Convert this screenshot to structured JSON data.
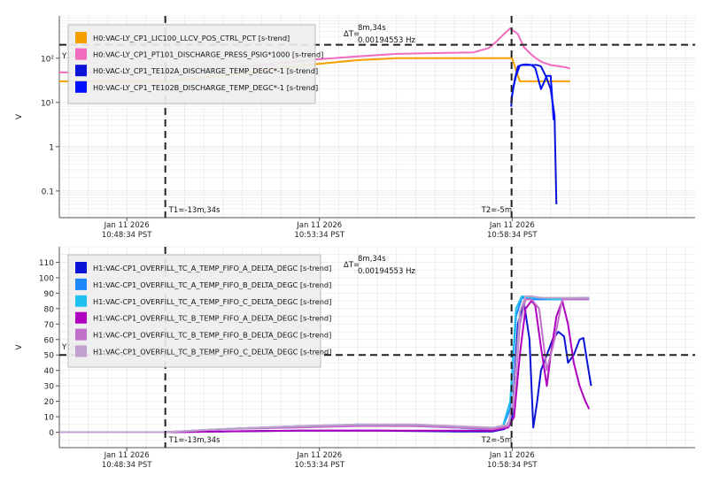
{
  "colors": {
    "cursor": "#222222",
    "ref": "#222222",
    "grid": "#e6e6e6",
    "axis": "#555555",
    "legend_bg": "#eeeeee"
  },
  "chart_data": [
    {
      "type": "line",
      "ylabel": "V",
      "yscale": "log",
      "ylim": [
        0.025,
        900
      ],
      "xlim": [
        -18.5,
        14.5
      ],
      "grid": true,
      "yticks": [
        {
          "v": 0.1,
          "label": "0.1"
        },
        {
          "v": 1,
          "label": "1"
        },
        {
          "v": 10,
          "label": "10¹"
        },
        {
          "v": 100,
          "label": "10²"
        }
      ],
      "xticks": [
        {
          "v": -15,
          "l1": "Jan 11 2026",
          "l2": "10:48:34 PST"
        },
        {
          "v": -5,
          "l1": "Jan 11 2026",
          "l2": "10:53:34 PST"
        },
        {
          "v": 5,
          "l1": "Jan 11 2026",
          "l2": "10:58:34 PST"
        }
      ],
      "cursors": [
        {
          "x": -13,
          "label": "T1=-13m,34s"
        },
        {
          "x": 4.97,
          "label": "T2=-5m"
        }
      ],
      "delta": {
        "label": "ΔT=",
        "line1": "8m,34s",
        "line2": "0.00194553 Hz"
      },
      "ref": {
        "y": 200,
        "label": "Y1="
      },
      "legend_position": "top-left",
      "series": [
        {
          "name": "H0:VAC-LY_CP1_LIC100_LLCV_POS_CTRL_PCT [s-trend]",
          "color": "#f5a000",
          "x": [
            -18.5,
            -13.1,
            -12.9,
            -9,
            -6,
            -3,
            -1,
            2,
            4.5,
            5.0,
            5.4,
            8
          ],
          "y": [
            30,
            30,
            30,
            45,
            68,
            90,
            100,
            100,
            100,
            100,
            30,
            30
          ]
        },
        {
          "name": "H0:VAC-LY_CP1_PT101_DISCHARGE_PRESS_PSIG*1000 [s-trend]",
          "color": "#f06cbf",
          "x": [
            -18.5,
            -17,
            -15,
            -13.5,
            -12.5,
            -11,
            -9,
            -7,
            -5,
            -3,
            -1,
            1,
            3,
            3.8,
            4.2,
            4.6,
            4.9,
            5.3,
            5.6,
            6.0,
            6.3,
            6.6,
            7.0,
            7.4,
            7.8,
            8
          ],
          "y": [
            48,
            47,
            46,
            46,
            48,
            55,
            65,
            78,
            95,
            110,
            125,
            130,
            135,
            170,
            240,
            360,
            470,
            350,
            180,
            120,
            95,
            80,
            70,
            66,
            62,
            58
          ]
        },
        {
          "name": "H0:VAC-LY_CP1_TE102A_DISCHARGE_TEMP_DEGC*-1 [s-trend]",
          "color": "#0a12d8",
          "x": [
            4.95,
            5.0,
            5.15,
            5.3,
            5.5,
            6.0,
            6.3,
            6.5,
            6.8,
            7.0,
            7.2,
            7.3
          ],
          "y": [
            8,
            15,
            35,
            65,
            70,
            70,
            70,
            65,
            35,
            20,
            5,
            0.05
          ]
        },
        {
          "name": "H0:VAC-LY_CP1_TE102B_DISCHARGE_TEMP_DEGC*-1 [s-trend]",
          "color": "#0011ff",
          "x": [
            4.95,
            5.05,
            5.2,
            5.4,
            5.6,
            5.8,
            6.0,
            6.2,
            6.5,
            6.8,
            7.0,
            7.05,
            7.15
          ],
          "y": [
            10,
            20,
            40,
            68,
            72,
            72,
            70,
            60,
            20,
            40,
            40,
            20,
            4
          ]
        }
      ]
    },
    {
      "type": "line",
      "ylabel": "V",
      "yscale": "linear",
      "ylim": [
        -10,
        120
      ],
      "xlim": [
        -18.5,
        14.5
      ],
      "grid": true,
      "yticks": [
        {
          "v": 0,
          "label": "0"
        },
        {
          "v": 10,
          "label": "10"
        },
        {
          "v": 20,
          "label": "20"
        },
        {
          "v": 30,
          "label": "30"
        },
        {
          "v": 40,
          "label": "40"
        },
        {
          "v": 50,
          "label": "50"
        },
        {
          "v": 60,
          "label": "60"
        },
        {
          "v": 70,
          "label": "70"
        },
        {
          "v": 80,
          "label": "80"
        },
        {
          "v": 90,
          "label": "90"
        },
        {
          "v": 100,
          "label": "100"
        },
        {
          "v": 110,
          "label": "110"
        }
      ],
      "xticks": [
        {
          "v": -15,
          "l1": "Jan 11 2026",
          "l2": "10:48:34 PST"
        },
        {
          "v": -5,
          "l1": "Jan 11 2026",
          "l2": "10:53:34 PST"
        },
        {
          "v": 5,
          "l1": "Jan 11 2026",
          "l2": "10:58:34 PST"
        }
      ],
      "cursors": [
        {
          "x": -13,
          "label": "T1=-13m,34s"
        },
        {
          "x": 4.97,
          "label": "T2=-5m"
        }
      ],
      "delta": {
        "label": "ΔT=",
        "line1": "8m,34s",
        "line2": "0.00194553 Hz"
      },
      "ref": {
        "y": 50,
        "label": "Y1=50"
      },
      "legend_position": "top-left",
      "series": [
        {
          "name": "H1:VAC-CP1_OVERFILL_TC_A_TEMP_FIFO_A_DELTA_DEGC [s-trend]",
          "color": "#0a14d4",
          "x": [
            -18.5,
            -13,
            -10,
            -6,
            -2,
            2,
            4,
            4.6,
            5.0,
            5.1,
            5.3,
            5.6,
            5.9,
            6.1,
            6.3,
            6.5,
            6.8,
            7.1,
            7.4,
            7.7,
            7.9,
            8.2,
            8.5,
            8.7,
            8.9,
            9.1
          ],
          "y": [
            0,
            0,
            0.5,
            1,
            1,
            0.5,
            0.5,
            2,
            10,
            30,
            70,
            85,
            60,
            3,
            20,
            40,
            50,
            60,
            65,
            62,
            45,
            50,
            60,
            61,
            45,
            30
          ]
        },
        {
          "name": "H1:VAC-CP1_OVERFILL_TC_A_TEMP_FIFO_B_DELTA_DEGC [s-trend]",
          "color": "#1e88ff",
          "x": [
            -18.5,
            -13,
            -10,
            -6,
            -3,
            0,
            2,
            3.5,
            4.5,
            4.9,
            5.2,
            5.5,
            6.0,
            6.5,
            7.0,
            7.5,
            8.0,
            8.5,
            9.0
          ],
          "y": [
            0,
            0,
            2,
            4,
            4.5,
            4,
            3,
            2,
            3,
            15,
            75,
            87,
            86,
            86,
            86,
            86,
            86,
            87,
            87
          ]
        },
        {
          "name": "H1:VAC-CP1_OVERFILL_TC_A_TEMP_FIFO_C_DELTA_DEGC [s-trend]",
          "color": "#20c0f0",
          "x": [
            -18.5,
            -13,
            -10,
            -6,
            -3,
            0,
            2,
            3.5,
            4.5,
            4.9,
            5.2,
            5.5,
            6.0,
            6.5,
            7.0,
            7.5,
            8.0,
            8.5,
            9.0
          ],
          "y": [
            0,
            0,
            2,
            4,
            5,
            4.5,
            3,
            2,
            3,
            20,
            80,
            88,
            87,
            87,
            86,
            86,
            86,
            86,
            86
          ]
        },
        {
          "name": "H1:VAC-CP1_OVERFILL_TC_B_TEMP_FIFO_A_DELTA_DEGC [s-trend]",
          "color": "#b000c0",
          "x": [
            -18.5,
            -13,
            -10,
            -6,
            -3,
            0,
            2,
            4,
            4.8,
            5.1,
            5.4,
            5.7,
            6.0,
            6.2,
            6.5,
            6.8,
            7.0,
            7.3,
            7.6,
            7.9,
            8.2,
            8.5,
            8.8,
            9.0
          ],
          "y": [
            0,
            0,
            0.5,
            1,
            1,
            1,
            1,
            1,
            3,
            10,
            50,
            80,
            85,
            82,
            55,
            30,
            50,
            75,
            85,
            70,
            45,
            30,
            20,
            15
          ]
        },
        {
          "name": "H1:VAC-CP1_OVERFILL_TC_B_TEMP_FIFO_B_DELTA_DEGC [s-trend]",
          "color": "#c070c8",
          "x": [
            -18.5,
            -13,
            -10,
            -6,
            -3,
            0,
            2,
            4,
            4.8,
            5.1,
            5.4,
            5.7,
            6.0,
            6.4,
            6.8,
            7.2,
            7.6,
            8.0,
            8.4,
            8.8,
            9.0
          ],
          "y": [
            0,
            0,
            2,
            3,
            4,
            4,
            3,
            2,
            4,
            20,
            70,
            86,
            86,
            80,
            40,
            60,
            86,
            86,
            86,
            86,
            86
          ]
        },
        {
          "name": "H1:VAC-CP1_OVERFILL_TC_B_TEMP_FIFO_C_DELTA_DEGC [s-trend]",
          "color": "#c0a0cc",
          "x": [
            -18.5,
            -13,
            -10,
            -6,
            -3,
            0,
            2,
            4,
            4.8,
            5.1,
            5.4,
            5.7,
            6.0,
            6.5,
            7.0,
            7.5,
            8.0,
            8.5,
            9.0
          ],
          "y": [
            0,
            0,
            2,
            4,
            5,
            5,
            4,
            3,
            5,
            25,
            78,
            88,
            88,
            87,
            87,
            87,
            87,
            87,
            87
          ]
        }
      ]
    }
  ]
}
